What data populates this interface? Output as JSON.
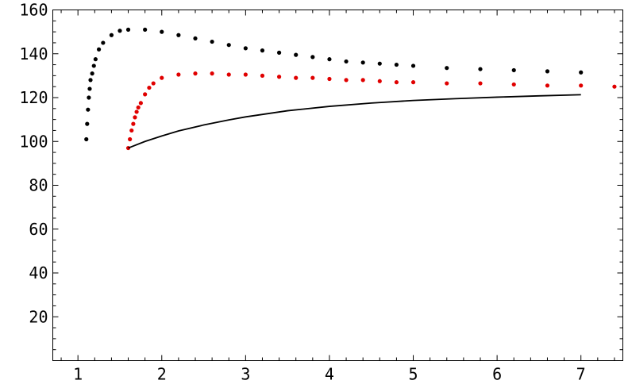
{
  "chart_data": {
    "type": "scatter",
    "title": "",
    "xlabel": "",
    "ylabel": "",
    "xlim": [
      0.7,
      7.5
    ],
    "ylim": [
      0,
      160
    ],
    "grid": false,
    "x_ticks": [
      1,
      2,
      3,
      4,
      5,
      6,
      7
    ],
    "y_ticks": [
      20,
      40,
      60,
      80,
      100,
      120,
      140,
      160
    ],
    "series": [
      {
        "kind": "points",
        "color": "#000000",
        "points": [
          [
            1.1,
            101
          ],
          [
            1.11,
            108
          ],
          [
            1.12,
            114.5
          ],
          [
            1.13,
            120
          ],
          [
            1.14,
            124
          ],
          [
            1.15,
            128
          ],
          [
            1.17,
            131
          ],
          [
            1.19,
            134.5
          ],
          [
            1.21,
            137.5
          ],
          [
            1.25,
            142
          ],
          [
            1.3,
            145
          ],
          [
            1.4,
            148.5
          ],
          [
            1.5,
            150.5
          ],
          [
            1.6,
            151
          ],
          [
            1.8,
            151
          ],
          [
            2.0,
            150
          ],
          [
            2.2,
            148.5
          ],
          [
            2.4,
            147
          ],
          [
            2.6,
            145.5
          ],
          [
            2.8,
            144
          ],
          [
            3.0,
            142.5
          ],
          [
            3.2,
            141.5
          ],
          [
            3.4,
            140.5
          ],
          [
            3.6,
            139.5
          ],
          [
            3.8,
            138.5
          ],
          [
            4.0,
            137.5
          ],
          [
            4.2,
            136.5
          ],
          [
            4.4,
            136
          ],
          [
            4.6,
            135.5
          ],
          [
            4.8,
            135
          ],
          [
            5.0,
            134.5
          ],
          [
            5.4,
            133.5
          ],
          [
            5.8,
            133
          ],
          [
            6.2,
            132.5
          ],
          [
            6.6,
            132
          ],
          [
            7.0,
            131.5
          ]
        ]
      },
      {
        "kind": "points",
        "color": "#e00000",
        "points": [
          [
            1.6,
            97
          ],
          [
            1.62,
            101
          ],
          [
            1.64,
            105
          ],
          [
            1.66,
            108
          ],
          [
            1.68,
            111
          ],
          [
            1.7,
            113.5
          ],
          [
            1.72,
            115.5
          ],
          [
            1.75,
            117.5
          ],
          [
            1.8,
            121.5
          ],
          [
            1.85,
            124.5
          ],
          [
            1.9,
            126.5
          ],
          [
            2.0,
            129
          ],
          [
            2.2,
            130.5
          ],
          [
            2.4,
            131
          ],
          [
            2.6,
            131
          ],
          [
            2.8,
            130.5
          ],
          [
            3.0,
            130.5
          ],
          [
            3.2,
            130
          ],
          [
            3.4,
            129.5
          ],
          [
            3.6,
            129
          ],
          [
            3.8,
            129
          ],
          [
            4.0,
            128.5
          ],
          [
            4.2,
            128
          ],
          [
            4.4,
            128
          ],
          [
            4.6,
            127.5
          ],
          [
            4.8,
            127
          ],
          [
            5.0,
            127
          ],
          [
            5.4,
            126.5
          ],
          [
            5.8,
            126.5
          ],
          [
            6.2,
            126
          ],
          [
            6.6,
            125.5
          ],
          [
            7.0,
            125.5
          ],
          [
            7.4,
            125
          ]
        ]
      },
      {
        "kind": "line",
        "color": "#000000",
        "points": [
          [
            1.6,
            97
          ],
          [
            1.8,
            100
          ],
          [
            2.0,
            102.5
          ],
          [
            2.2,
            104.8
          ],
          [
            2.5,
            107.5
          ],
          [
            2.8,
            109.8
          ],
          [
            3.0,
            111.2
          ],
          [
            3.5,
            114
          ],
          [
            4.0,
            116
          ],
          [
            4.5,
            117.5
          ],
          [
            5.0,
            118.7
          ],
          [
            5.5,
            119.5
          ],
          [
            6.0,
            120.2
          ],
          [
            6.5,
            120.8
          ],
          [
            7.0,
            121.3
          ]
        ]
      }
    ]
  }
}
